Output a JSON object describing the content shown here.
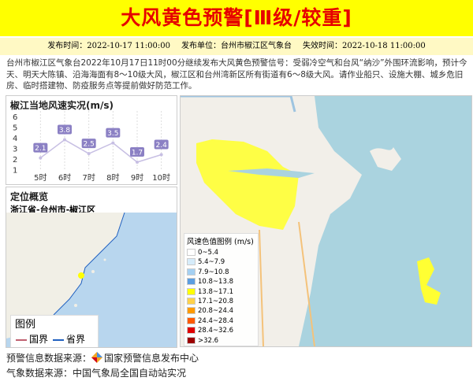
{
  "header": {
    "title": "大风黄色预警[Ⅲ级/较重]"
  },
  "info": [
    "发布时间：2022-10-17 11:00:00",
    "发布单位：台州市椒江区气象台",
    "失效时间：2022-10-18 11:00:00"
  ],
  "description": "台州市椒江区气象台2022年10月17日11时00分继续发布大风黄色预警信号：受弱冷空气和台风“纳沙”外围环流影响，预计今天、明天大陈镇、沿海海面有8～10级大风，椒江区和台州湾新区所有街道有6～8级大风。请作业船只、设施大棚、城乡危旧房、临时搭建物、防疫服务点等提前做好防范工作。",
  "wind_chart": {
    "type": "line",
    "title": "椒江当地风速实况(m/s)",
    "categories": [
      "5时",
      "6时",
      "7时",
      "8时",
      "9时",
      "10时"
    ],
    "values": [
      2.1,
      3.8,
      2.5,
      3.5,
      1.7,
      2.4
    ],
    "color": "#c7bfe3",
    "label_color": "#8b80c4",
    "ylim": [
      0,
      6.5
    ],
    "yticks": [
      1,
      2,
      3,
      4,
      5,
      6
    ]
  },
  "location": {
    "title": "定位概览",
    "region": "浙江省-台州市-椒江区",
    "legend_title": "图例",
    "legend": [
      {
        "label": "国界",
        "color": "#c06070"
      },
      {
        "label": "省界",
        "color": "#2060c0"
      }
    ]
  },
  "map_legend": {
    "title": "风速色值图例 (m/s)",
    "items": [
      {
        "label": "0~5.4",
        "color": "#ffffff"
      },
      {
        "label": "5.4~7.9",
        "color": "#d6ecfa"
      },
      {
        "label": "7.9~10.8",
        "color": "#a4d0f2"
      },
      {
        "label": "10.8~13.8",
        "color": "#5c9ee0"
      },
      {
        "label": "13.8~17.1",
        "color": "#ffff00"
      },
      {
        "label": "17.1~20.8",
        "color": "#ffd24a"
      },
      {
        "label": "20.8~24.4",
        "color": "#ff9a00"
      },
      {
        "label": "24.4~28.4",
        "color": "#ff5a00"
      },
      {
        "label": "28.4~32.6",
        "color": "#e00000"
      },
      {
        "label": ">32.6",
        "color": "#9c0000"
      }
    ]
  },
  "footer": {
    "source_label": "预警信息数据来源：",
    "source": "国家预警信息发布中心",
    "weather_source": "气象数据来源：中国气象局全国自动站实况"
  }
}
